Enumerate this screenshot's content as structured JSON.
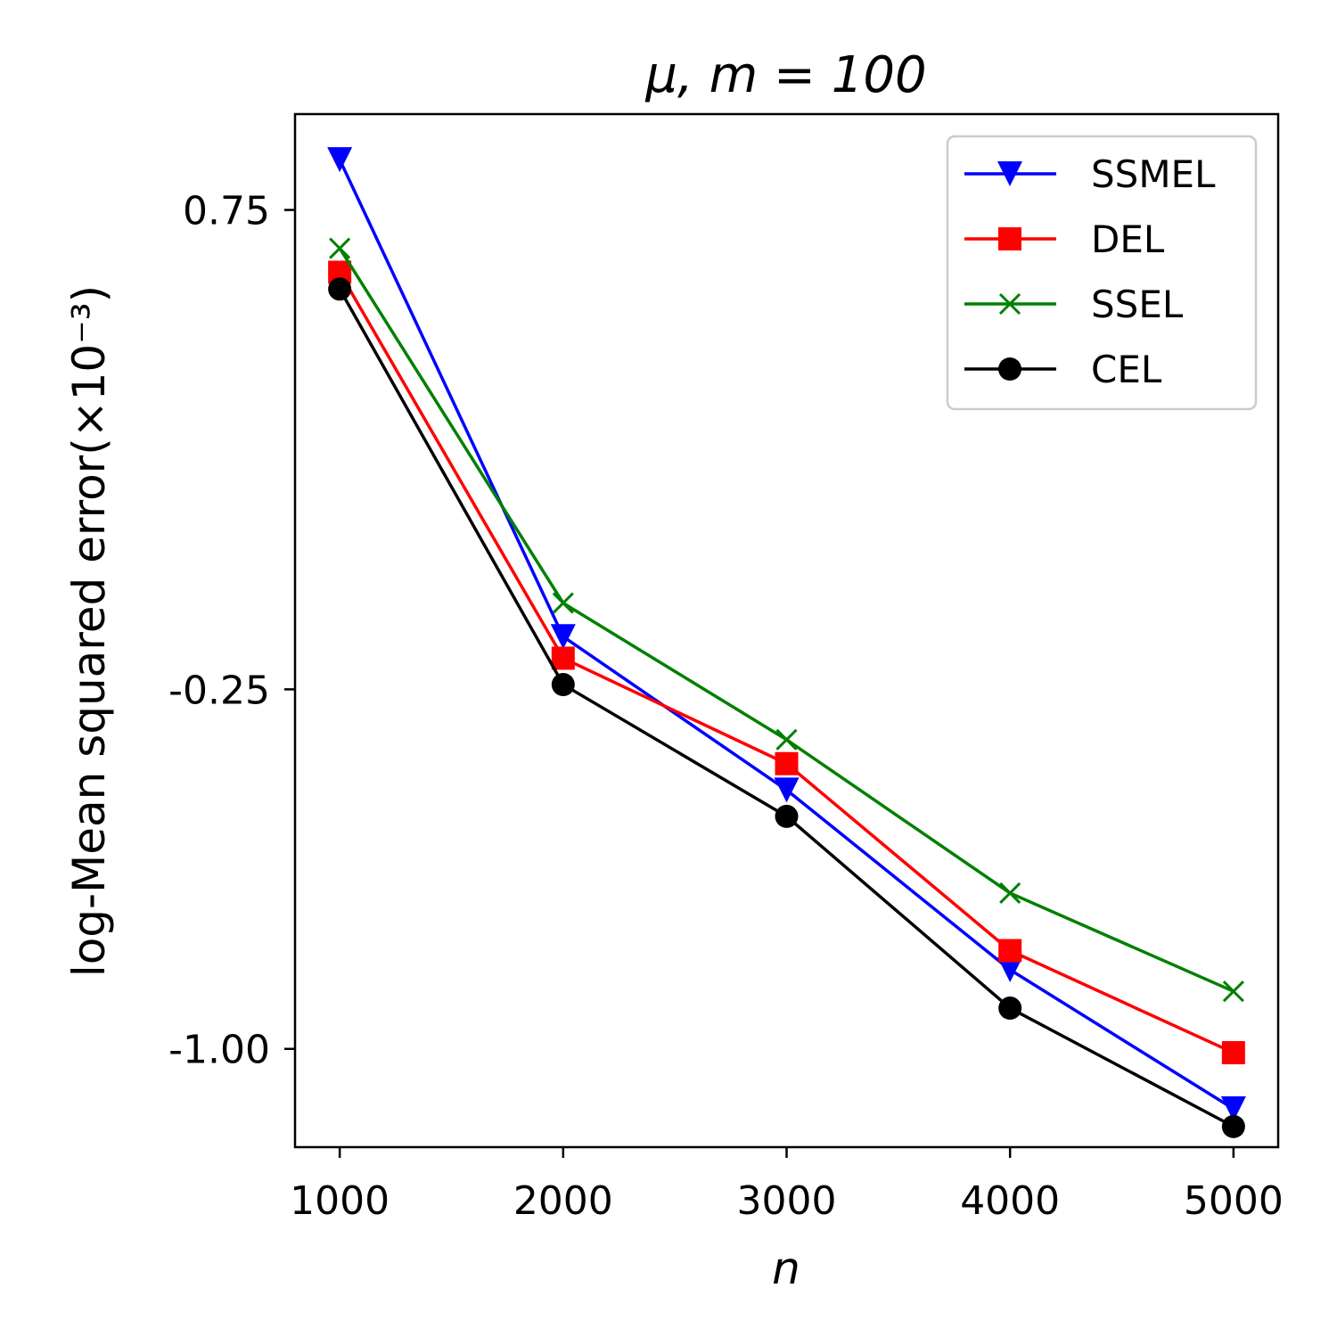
{
  "chart_data": {
    "type": "line",
    "title": "μ, m = 100",
    "xlabel": "n",
    "ylabel": "log-Mean squared error(×10⁻³)",
    "x": [
      1000,
      2000,
      3000,
      4000,
      5000
    ],
    "xlim": [
      800,
      5200
    ],
    "ylim": [
      -1.205,
      0.95
    ],
    "xticks": [
      1000,
      2000,
      3000,
      4000,
      5000
    ],
    "xtick_labels": [
      "1000",
      "2000",
      "3000",
      "4000",
      "5000"
    ],
    "yticks": [
      0.75,
      -0.25,
      -1.0
    ],
    "ytick_labels": [
      "0.75",
      "-0.25",
      "-1.00"
    ],
    "grid": false,
    "legend_position": "top-right",
    "series": [
      {
        "name": "SSMEL",
        "color": "#0000ff",
        "marker": "triangle-down",
        "values": [
          0.855,
          -0.14,
          -0.46,
          -0.835,
          -1.125
        ]
      },
      {
        "name": "DEL",
        "color": "#ff0000",
        "marker": "square",
        "values": [
          0.62,
          -0.185,
          -0.405,
          -0.795,
          -1.008
        ]
      },
      {
        "name": "SSEL",
        "color": "#008000",
        "marker": "x",
        "values": [
          0.67,
          -0.07,
          -0.355,
          -0.675,
          -0.88
        ]
      },
      {
        "name": "CEL",
        "color": "#000000",
        "marker": "circle",
        "values": [
          0.585,
          -0.24,
          -0.515,
          -0.915,
          -1.162
        ]
      }
    ]
  }
}
